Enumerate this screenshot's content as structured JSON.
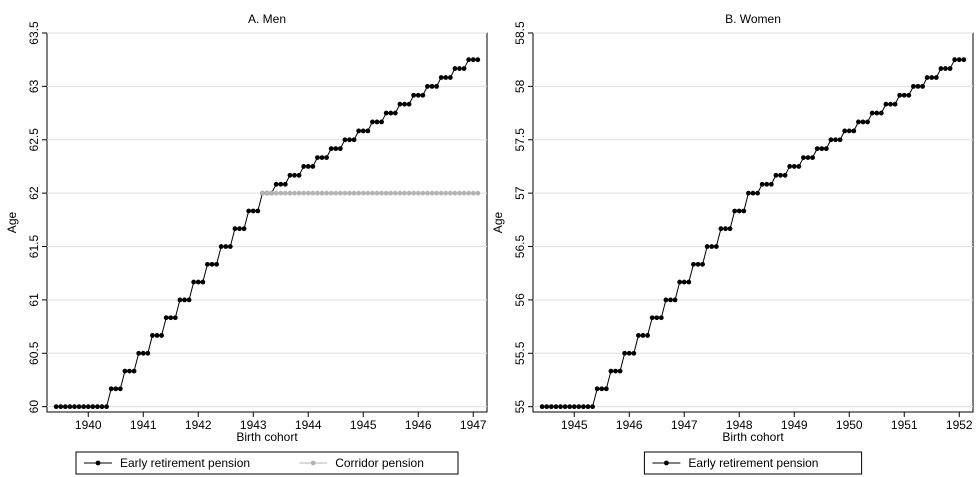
{
  "chart_data": [
    {
      "type": "line",
      "title": "A. Men",
      "x_label": "Birth cohort",
      "y_label": "Age",
      "x": [
        1939.417,
        1939.5,
        1939.583,
        1939.667,
        1939.75,
        1939.833,
        1939.917,
        1940,
        1940.083,
        1940.167,
        1940.25,
        1940.333,
        1940.417,
        1940.5,
        1940.583,
        1940.667,
        1940.75,
        1940.833,
        1940.917,
        1941,
        1941.083,
        1941.167,
        1941.25,
        1941.333,
        1941.417,
        1941.5,
        1941.583,
        1941.667,
        1941.75,
        1941.833,
        1941.917,
        1942,
        1942.083,
        1942.167,
        1942.25,
        1942.333,
        1942.417,
        1942.5,
        1942.583,
        1942.667,
        1942.75,
        1942.833,
        1942.917,
        1943,
        1943.083,
        1943.167,
        1943.25,
        1943.333,
        1943.417,
        1943.5,
        1943.583,
        1943.667,
        1943.75,
        1943.833,
        1943.917,
        1944,
        1944.083,
        1944.167,
        1944.25,
        1944.333,
        1944.417,
        1944.5,
        1944.583,
        1944.667,
        1944.75,
        1944.833,
        1944.917,
        1945,
        1945.083,
        1945.167,
        1945.25,
        1945.333,
        1945.417,
        1945.5,
        1945.583,
        1945.667,
        1945.75,
        1945.833,
        1945.917,
        1946,
        1946.083,
        1946.167,
        1946.25,
        1946.333,
        1946.417,
        1946.5,
        1946.583,
        1946.667,
        1946.75,
        1946.833,
        1946.917,
        1947,
        1947.083
      ],
      "series": [
        {
          "name": "Early retirement pension",
          "color": "#000000",
          "values": [
            60,
            60,
            60,
            60,
            60,
            60,
            60,
            60,
            60,
            60,
            60,
            60,
            60.167,
            60.167,
            60.167,
            60.333,
            60.333,
            60.333,
            60.5,
            60.5,
            60.5,
            60.667,
            60.667,
            60.667,
            60.833,
            60.833,
            60.833,
            61,
            61,
            61,
            61.167,
            61.167,
            61.167,
            61.333,
            61.333,
            61.333,
            61.5,
            61.5,
            61.5,
            61.667,
            61.667,
            61.667,
            61.833,
            61.833,
            61.833,
            62,
            62,
            62,
            62.083,
            62.083,
            62.083,
            62.167,
            62.167,
            62.167,
            62.25,
            62.25,
            62.25,
            62.333,
            62.333,
            62.333,
            62.417,
            62.417,
            62.417,
            62.5,
            62.5,
            62.5,
            62.583,
            62.583,
            62.583,
            62.667,
            62.667,
            62.667,
            62.75,
            62.75,
            62.75,
            62.833,
            62.833,
            62.833,
            62.917,
            62.917,
            62.917,
            63,
            63,
            63,
            63.083,
            63.083,
            63.083,
            63.167,
            63.167,
            63.167,
            63.25,
            63.25,
            63.25
          ]
        },
        {
          "name": "Corridor pension",
          "color": "#b4b4b4",
          "values": [
            null,
            null,
            null,
            null,
            null,
            null,
            null,
            null,
            null,
            null,
            null,
            null,
            null,
            null,
            null,
            null,
            null,
            null,
            null,
            null,
            null,
            null,
            null,
            null,
            null,
            null,
            null,
            null,
            null,
            null,
            null,
            null,
            null,
            null,
            null,
            null,
            null,
            null,
            null,
            null,
            null,
            null,
            null,
            null,
            null,
            62,
            62,
            62,
            62,
            62,
            62,
            62,
            62,
            62,
            62,
            62,
            62,
            62,
            62,
            62,
            62,
            62,
            62,
            62,
            62,
            62,
            62,
            62,
            62,
            62,
            62,
            62,
            62,
            62,
            62,
            62,
            62,
            62,
            62,
            62,
            62,
            62,
            62,
            62,
            62,
            62,
            62,
            62,
            62,
            62,
            62,
            62,
            62
          ]
        }
      ],
      "xlim": [
        1939.25,
        1947.25
      ],
      "xticks": [
        1940,
        1941,
        1942,
        1943,
        1944,
        1945,
        1946,
        1947
      ],
      "ylim": [
        59.95,
        63.5
      ],
      "yticks": [
        60,
        60.5,
        61,
        61.5,
        62,
        62.5,
        63,
        63.5
      ],
      "grid": true,
      "legend": "bottom"
    },
    {
      "type": "line",
      "title": "B. Women",
      "x_label": "Birth cohort",
      "y_label": "Age",
      "x": [
        1944.417,
        1944.5,
        1944.583,
        1944.667,
        1944.75,
        1944.833,
        1944.917,
        1945,
        1945.083,
        1945.167,
        1945.25,
        1945.333,
        1945.417,
        1945.5,
        1945.583,
        1945.667,
        1945.75,
        1945.833,
        1945.917,
        1946,
        1946.083,
        1946.167,
        1946.25,
        1946.333,
        1946.417,
        1946.5,
        1946.583,
        1946.667,
        1946.75,
        1946.833,
        1946.917,
        1947,
        1947.083,
        1947.167,
        1947.25,
        1947.333,
        1947.417,
        1947.5,
        1947.583,
        1947.667,
        1947.75,
        1947.833,
        1947.917,
        1948,
        1948.083,
        1948.167,
        1948.25,
        1948.333,
        1948.417,
        1948.5,
        1948.583,
        1948.667,
        1948.75,
        1948.833,
        1948.917,
        1949,
        1949.083,
        1949.167,
        1949.25,
        1949.333,
        1949.417,
        1949.5,
        1949.583,
        1949.667,
        1949.75,
        1949.833,
        1949.917,
        1950,
        1950.083,
        1950.167,
        1950.25,
        1950.333,
        1950.417,
        1950.5,
        1950.583,
        1950.667,
        1950.75,
        1950.833,
        1950.917,
        1951,
        1951.083,
        1951.167,
        1951.25,
        1951.333,
        1951.417,
        1951.5,
        1951.583,
        1951.667,
        1951.75,
        1951.833,
        1951.917,
        1952,
        1952.083
      ],
      "series": [
        {
          "name": "Early retirement pension",
          "color": "#000000",
          "values": [
            55,
            55,
            55,
            55,
            55,
            55,
            55,
            55,
            55,
            55,
            55,
            55,
            55.167,
            55.167,
            55.167,
            55.333,
            55.333,
            55.333,
            55.5,
            55.5,
            55.5,
            55.667,
            55.667,
            55.667,
            55.833,
            55.833,
            55.833,
            56,
            56,
            56,
            56.167,
            56.167,
            56.167,
            56.333,
            56.333,
            56.333,
            56.5,
            56.5,
            56.5,
            56.667,
            56.667,
            56.667,
            56.833,
            56.833,
            56.833,
            57,
            57,
            57,
            57.083,
            57.083,
            57.083,
            57.167,
            57.167,
            57.167,
            57.25,
            57.25,
            57.25,
            57.333,
            57.333,
            57.333,
            57.417,
            57.417,
            57.417,
            57.5,
            57.5,
            57.5,
            57.583,
            57.583,
            57.583,
            57.667,
            57.667,
            57.667,
            57.75,
            57.75,
            57.75,
            57.833,
            57.833,
            57.833,
            57.917,
            57.917,
            57.917,
            58,
            58,
            58,
            58.083,
            58.083,
            58.083,
            58.167,
            58.167,
            58.167,
            58.25,
            58.25,
            58.25
          ]
        }
      ],
      "xlim": [
        1944.25,
        1952.25
      ],
      "xticks": [
        1945,
        1946,
        1947,
        1948,
        1949,
        1950,
        1951,
        1952
      ],
      "ylim": [
        54.95,
        58.5
      ],
      "yticks": [
        55,
        55.5,
        56,
        56.5,
        57,
        57.5,
        58,
        58.5
      ],
      "grid": true,
      "legend": "bottom"
    }
  ]
}
